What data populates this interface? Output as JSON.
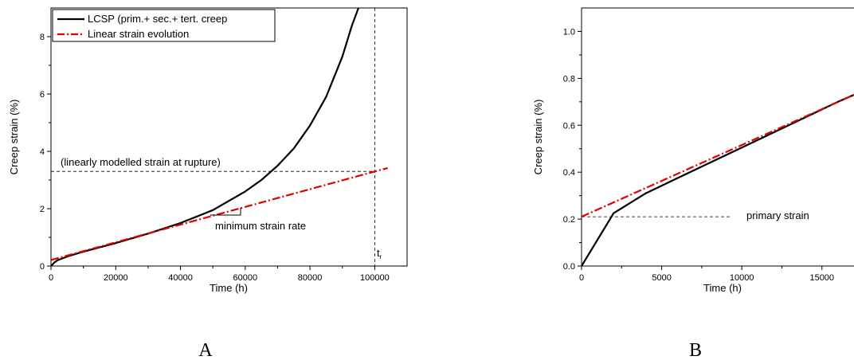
{
  "chart_data": [
    {
      "panel_label": "A",
      "type": "line",
      "xlabel": "Time (h)",
      "ylabel": "Creep strain (%)",
      "xlim": [
        0,
        110000
      ],
      "ylim": [
        0,
        9
      ],
      "xticks": [
        0,
        20000,
        40000,
        60000,
        80000,
        100000
      ],
      "yticks": [
        0,
        2,
        4,
        6,
        8
      ],
      "legend_position": "top-left",
      "series": [
        {
          "name": "LCSP (prim.+ sec.+ tert. creep",
          "color": "#000000",
          "style": "solid",
          "x": [
            0,
            1000,
            2000,
            5000,
            10000,
            20000,
            30000,
            40000,
            50000,
            60000,
            65000,
            70000,
            75000,
            80000,
            85000,
            90000,
            93000,
            95000
          ],
          "y": [
            0.0,
            0.12,
            0.2,
            0.33,
            0.5,
            0.8,
            1.13,
            1.5,
            1.95,
            2.6,
            3.0,
            3.5,
            4.1,
            4.9,
            5.9,
            7.3,
            8.4,
            9.0
          ]
        },
        {
          "name": "Linear strain evolution",
          "color": "#e00000",
          "style": "dash-dot",
          "x": [
            0,
            104000
          ],
          "y": [
            0.21,
            3.42
          ]
        }
      ],
      "annotations": [
        {
          "text": "(linearly modelled strain at rupture)",
          "x": 3000,
          "y": 3.45
        },
        {
          "text": "minimum strain rate",
          "x": 47000,
          "y": 1.0
        },
        {
          "text": "t",
          "subscript": "r",
          "x": 101500,
          "y": 0.25
        }
      ],
      "reference_lines": [
        {
          "type": "vertical",
          "x": 100000,
          "style": "dashed"
        },
        {
          "type": "horizontal",
          "y": 3.3,
          "x_range": [
            0,
            100000
          ],
          "style": "dashed"
        }
      ]
    },
    {
      "panel_label": "B",
      "type": "line",
      "xlabel": "Time (h)",
      "ylabel": "Creep strain (%)",
      "xlim": [
        0,
        17000
      ],
      "ylim": [
        0,
        1.1
      ],
      "xticks": [
        0,
        5000,
        10000,
        15000
      ],
      "yticks": [
        0.0,
        0.2,
        0.4,
        0.6,
        0.8,
        1.0
      ],
      "yticklabels": [
        "0.0",
        "0.2",
        "0.4",
        "0.6",
        "0.8",
        "1.0"
      ],
      "series": [
        {
          "color": "#000000",
          "style": "solid",
          "x": [
            0,
            2000,
            4000,
            6000,
            8000,
            10000,
            12000,
            14000,
            16000,
            17000
          ],
          "y": [
            0.0,
            0.225,
            0.31,
            0.375,
            0.44,
            0.505,
            0.57,
            0.635,
            0.7,
            0.73
          ]
        },
        {
          "color": "#e00000",
          "style": "dash-dot",
          "x": [
            0,
            17000
          ],
          "y": [
            0.21,
            0.73
          ]
        }
      ],
      "annotations": [
        {
          "text": "primary strain",
          "x": 10000,
          "y": 0.21
        }
      ],
      "reference_lines": [
        {
          "type": "horizontal",
          "y": 0.21,
          "x_range": [
            0,
            9300
          ],
          "style": "dashed"
        }
      ]
    }
  ]
}
